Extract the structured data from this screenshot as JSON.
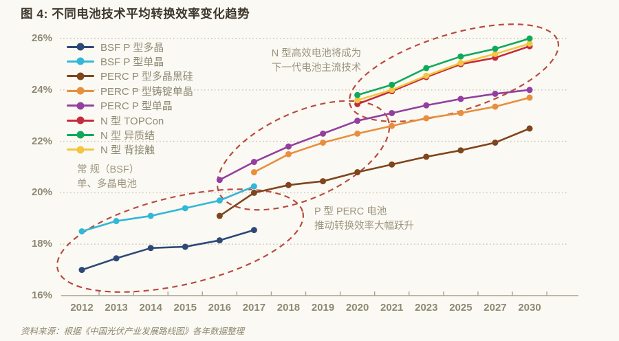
{
  "page": {
    "title": "图 4: 不同电池技术平均转换效率变化趋势",
    "source": "资料来源：根据《中国光伏产业发展路线图》各年数据整理",
    "background_color": "#fbf9f3"
  },
  "chart_data": {
    "type": "line",
    "title": "不同电池技术平均转换效率变化趋势",
    "x_categories": [
      "2012",
      "2013",
      "2014",
      "2015",
      "2016",
      "2017",
      "2018",
      "2019",
      "2020",
      "2021",
      "2023",
      "2025",
      "2027",
      "2030"
    ],
    "y_tick_labels": [
      "26%",
      "24%",
      "22%",
      "20%",
      "18%",
      "16%"
    ],
    "y_tick_values": [
      26,
      24,
      22,
      20,
      18,
      16
    ],
    "ylim": [
      16,
      26
    ],
    "y_unit": "%",
    "grid": "dashed-horizontal",
    "legend_position": "top-left",
    "axis_color": "#a8a391",
    "grid_color": "#c7c3b1",
    "highlight_ellipse_color": "#b84b40",
    "series": [
      {
        "name": "BSF P 型多晶",
        "color": "#2e4978",
        "start_index": 0,
        "values": [
          17.0,
          17.45,
          17.85,
          17.9,
          18.15,
          18.55
        ]
      },
      {
        "name": "BSF P 型单晶",
        "color": "#31b7d8",
        "start_index": 0,
        "values": [
          18.5,
          18.9,
          19.1,
          19.4,
          19.7,
          20.25
        ]
      },
      {
        "name": "PERC P 型多晶黑硅",
        "color": "#7f451c",
        "start_index": 4,
        "values": [
          19.1,
          20.0,
          20.3,
          20.45,
          20.8,
          21.1,
          21.4,
          21.65,
          21.95,
          22.5
        ]
      },
      {
        "name": "PERC P 型铸锭单晶",
        "color": "#e88f3d",
        "start_index": 5,
        "values": [
          20.8,
          21.5,
          21.95,
          22.3,
          22.6,
          22.9,
          23.1,
          23.35,
          23.7
        ]
      },
      {
        "name": "PERC P 型单晶",
        "color": "#933f9f",
        "start_index": 4,
        "values": [
          20.5,
          21.2,
          21.8,
          22.3,
          22.8,
          23.1,
          23.4,
          23.65,
          23.85,
          24.0
        ]
      },
      {
        "name": "N 型 TOPCon",
        "color": "#c42b3b",
        "start_index": 8,
        "values": [
          23.45,
          23.95,
          24.5,
          25.0,
          25.25,
          25.7
        ]
      },
      {
        "name": "N 型 异质结",
        "color": "#10a95c",
        "start_index": 8,
        "values": [
          23.8,
          24.2,
          24.85,
          25.3,
          25.6,
          26.0
        ]
      },
      {
        "name": "N 型 背接触",
        "color": "#f2c640",
        "start_index": 8,
        "values": [
          23.6,
          24.0,
          24.55,
          25.05,
          25.4,
          25.8
        ]
      }
    ],
    "annotations": [
      {
        "id": "n-type-note",
        "lines": [
          "N 型高效电池将成为",
          "下一代电池主流技术"
        ]
      },
      {
        "id": "bsf-note",
        "lines": [
          "常 规（BSF）",
          "单、多晶电池"
        ]
      },
      {
        "id": "perc-note",
        "lines": [
          "P 型 PERC 电池",
          "推动转换效率大幅跃升"
        ]
      }
    ]
  }
}
